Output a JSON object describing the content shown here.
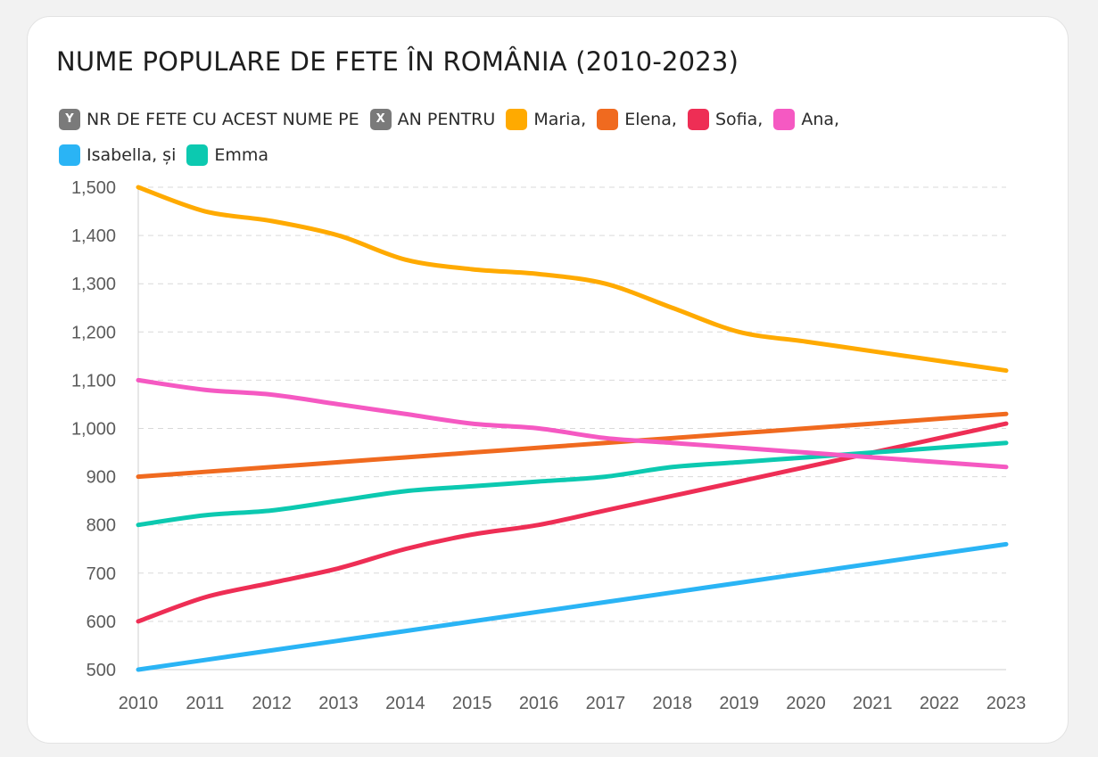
{
  "title": "NUME POPULARE DE FETE ÎN ROMÂNIA (2010-2023)",
  "legend": {
    "y_badge": "Y",
    "y_text": "NR DE FETE CU ACEST NUME PE",
    "x_badge": "X",
    "x_text": "AN PENTRU",
    "badge_color": "#7a7a7a",
    "entries": [
      {
        "text": "Maria,",
        "color": "#ffaa00"
      },
      {
        "text": "Elena,",
        "color": "#f06a1f"
      },
      {
        "text": "Sofia,",
        "color": "#ee2e55"
      },
      {
        "text": "Ana,",
        "color": "#f559c2"
      },
      {
        "text": "Isabella, și",
        "color": "#2ab4f5"
      },
      {
        "text": "Emma",
        "color": "#0cc9b0"
      }
    ]
  },
  "chart_data": {
    "type": "line",
    "x": [
      "2010",
      "2011",
      "2012",
      "2013",
      "2014",
      "2015",
      "2016",
      "2017",
      "2018",
      "2019",
      "2020",
      "2021",
      "2022",
      "2023"
    ],
    "ylim": [
      500,
      1500
    ],
    "yticks": [
      500,
      600,
      700,
      800,
      900,
      1000,
      1100,
      1200,
      1300,
      1400,
      1500
    ],
    "ytick_labels": [
      "500",
      "600",
      "700",
      "800",
      "900",
      "1,000",
      "1,100",
      "1,200",
      "1,300",
      "1,400",
      "1,500"
    ],
    "grid": true,
    "series": [
      {
        "name": "Maria",
        "color": "#ffaa00",
        "values": [
          1500,
          1450,
          1430,
          1400,
          1350,
          1330,
          1320,
          1300,
          1250,
          1200,
          1180,
          1160,
          1140,
          1120
        ]
      },
      {
        "name": "Elena",
        "color": "#f06a1f",
        "values": [
          900,
          910,
          920,
          930,
          940,
          950,
          960,
          970,
          980,
          990,
          1000,
          1010,
          1020,
          1030
        ]
      },
      {
        "name": "Sofia",
        "color": "#ee2e55",
        "values": [
          600,
          650,
          680,
          710,
          750,
          780,
          800,
          830,
          860,
          890,
          920,
          950,
          980,
          1010
        ]
      },
      {
        "name": "Ana",
        "color": "#f559c2",
        "values": [
          1100,
          1080,
          1070,
          1050,
          1030,
          1010,
          1000,
          980,
          970,
          960,
          950,
          940,
          930,
          920
        ]
      },
      {
        "name": "Isabella",
        "color": "#2ab4f5",
        "values": [
          500,
          520,
          540,
          560,
          580,
          600,
          620,
          640,
          660,
          680,
          700,
          720,
          740,
          760
        ]
      },
      {
        "name": "Emma",
        "color": "#0cc9b0",
        "values": [
          800,
          820,
          830,
          850,
          870,
          880,
          890,
          900,
          920,
          930,
          940,
          950,
          960,
          970
        ]
      }
    ]
  }
}
